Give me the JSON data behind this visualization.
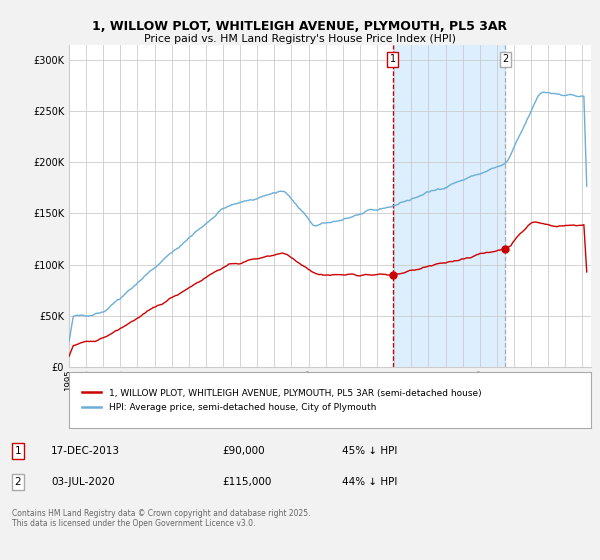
{
  "title_line1": "1, WILLOW PLOT, WHITLEIGH AVENUE, PLYMOUTH, PL5 3AR",
  "title_line2": "Price paid vs. HM Land Registry's House Price Index (HPI)",
  "background_color": "#f2f2f2",
  "plot_bg_color": "#ffffff",
  "hpi_color": "#6baed6",
  "price_color": "#cc0000",
  "shade_color": "#ddeeff",
  "marker1_date": "17-DEC-2013",
  "marker1_price": "£90,000",
  "marker1_note": "45% ↓ HPI",
  "marker2_date": "03-JUL-2020",
  "marker2_price": "£115,000",
  "marker2_note": "44% ↓ HPI",
  "legend_line1": "1, WILLOW PLOT, WHITLEIGH AVENUE, PLYMOUTH, PL5 3AR (semi-detached house)",
  "legend_line2": "HPI: Average price, semi-detached house, City of Plymouth",
  "footer": "Contains HM Land Registry data © Crown copyright and database right 2025.\nThis data is licensed under the Open Government Licence v3.0.",
  "yticks": [
    0,
    50000,
    100000,
    150000,
    200000,
    250000,
    300000
  ],
  "ytick_labels": [
    "£0",
    "£50K",
    "£100K",
    "£150K",
    "£200K",
    "£250K",
    "£300K"
  ],
  "ylim": [
    0,
    315000
  ],
  "xlim_left": 1995,
  "xlim_right": 2025.5
}
